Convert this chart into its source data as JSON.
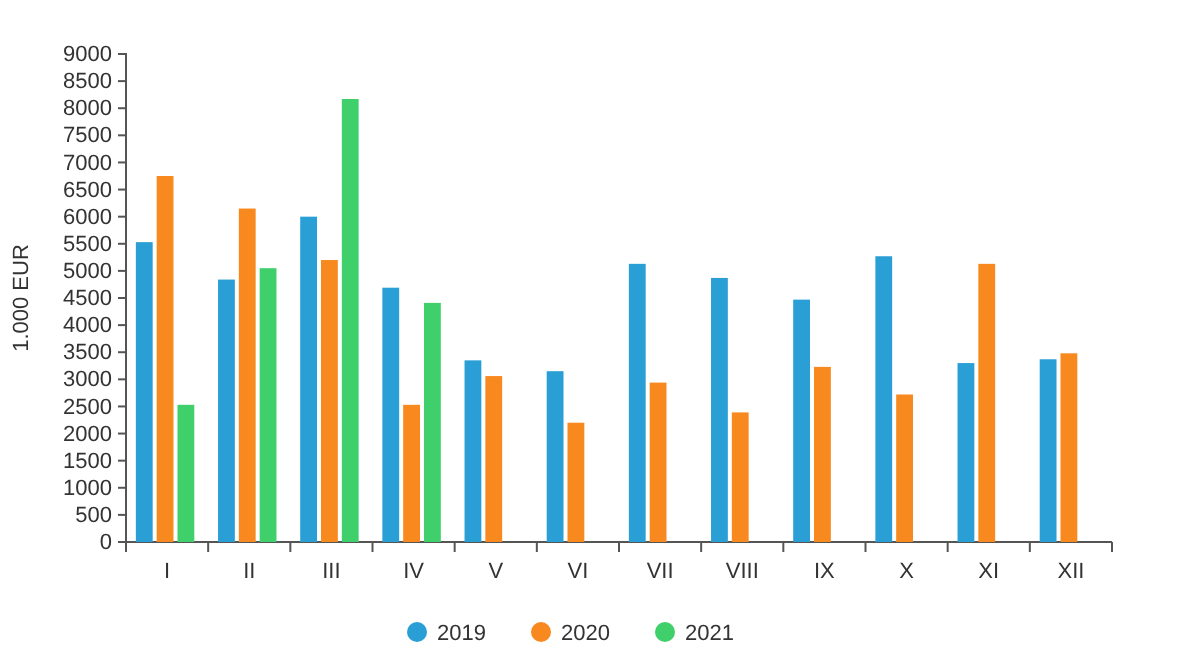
{
  "chart_data": {
    "type": "bar",
    "ylabel": "1.000 EUR",
    "categories": [
      "I",
      "II",
      "III",
      "IV",
      "V",
      "VI",
      "VII",
      "VIII",
      "IX",
      "X",
      "XI",
      "XII"
    ],
    "series": [
      {
        "name": "2019",
        "color": "#2a9fd6",
        "values": [
          5530,
          4840,
          6000,
          4690,
          3350,
          3150,
          5130,
          4870,
          4470,
          5270,
          3300,
          3370
        ]
      },
      {
        "name": "2020",
        "color": "#f7891f",
        "values": [
          6750,
          6150,
          5200,
          2530,
          3060,
          2200,
          2940,
          2390,
          3230,
          2720,
          5130,
          3480
        ]
      },
      {
        "name": "2021",
        "color": "#3fd06c",
        "values": [
          2530,
          5050,
          8170,
          4410,
          null,
          null,
          null,
          null,
          null,
          null,
          null,
          null
        ]
      }
    ],
    "ylim": [
      0,
      9000
    ],
    "yticks": [
      0,
      500,
      1000,
      1500,
      2000,
      2500,
      3000,
      3500,
      4000,
      4500,
      5000,
      5500,
      6000,
      6500,
      7000,
      7500,
      8000,
      8500,
      9000
    ],
    "legend": "bottom"
  }
}
